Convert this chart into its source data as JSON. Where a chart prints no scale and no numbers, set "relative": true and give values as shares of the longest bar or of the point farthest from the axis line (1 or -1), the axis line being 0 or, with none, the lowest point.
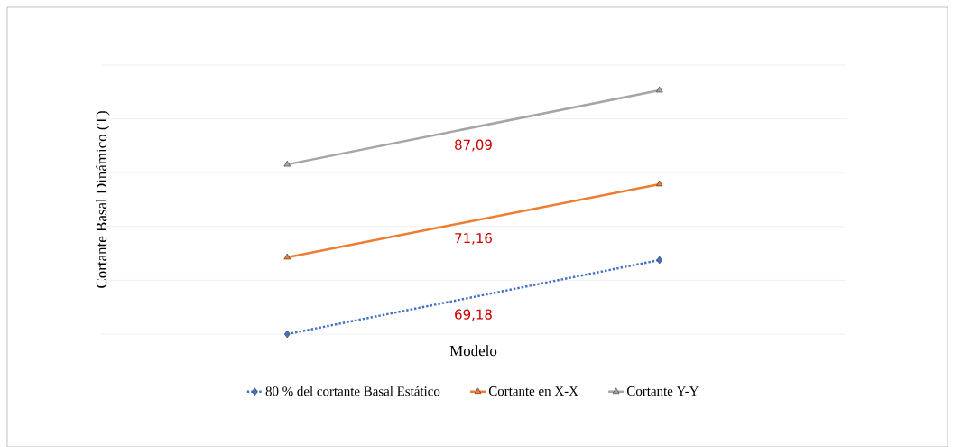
{
  "chart_data": {
    "type": "line",
    "ylabel": "Cortante Basal Dinámico (T)",
    "xlabel": "Modelo",
    "categories": [
      null,
      null
    ],
    "relative": true,
    "grid": "y",
    "legend": "bottom",
    "series": [
      {
        "name": "80 %  del cortante Basal Estático",
        "color": "#4472c4",
        "values": [
          0,
          0.304
        ],
        "marker": "diamond",
        "line_style": "dotted"
      },
      {
        "name": "Cortante en X-X",
        "color": "#ed7d31",
        "values": [
          0.315,
          0.615
        ],
        "marker": "triangle",
        "line_style": "solid"
      },
      {
        "name": "Cortante Y-Y",
        "color": "#a5a5a5",
        "values": [
          0.696,
          1
        ],
        "marker": "triangle",
        "line_style": "solid"
      }
    ],
    "annotations": [
      "87,09",
      "71,16",
      "69,18"
    ]
  }
}
